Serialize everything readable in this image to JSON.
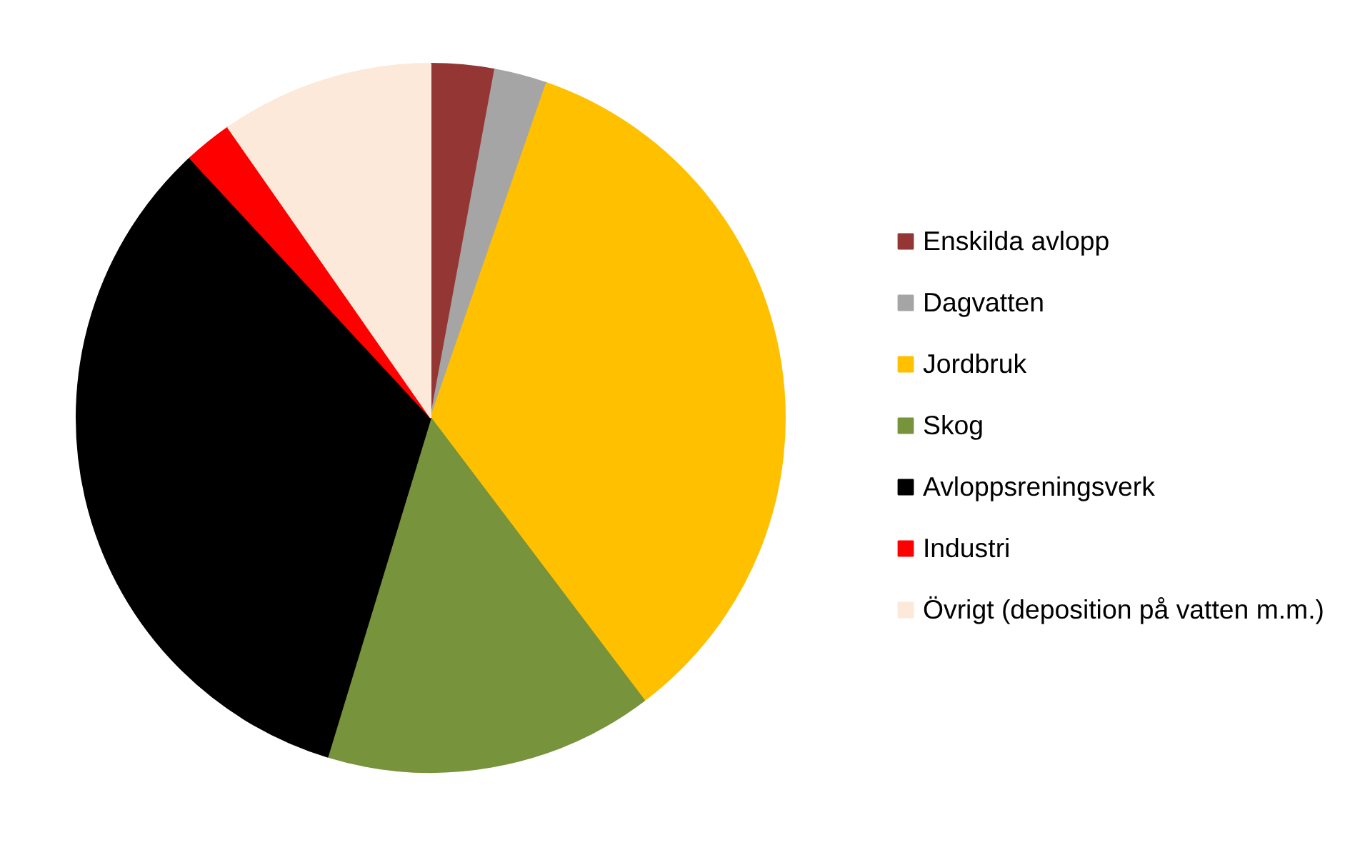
{
  "chart_data": {
    "type": "pie",
    "categories": [
      "Enskilda avlopp",
      "Dagvatten",
      "Jordbruk",
      "Skog",
      "Avloppsreningsverk",
      "Industri",
      "Övrigt (deposition på vatten m.m.)"
    ],
    "values": [
      2.9,
      2.4,
      34.4,
      15.0,
      33.4,
      2.2,
      9.7
    ],
    "colors": [
      "#943634",
      "#a5a5a5",
      "#ffc000",
      "#77933c",
      "#000000",
      "#ff0000",
      "#fde9d9"
    ],
    "legend": "right"
  }
}
